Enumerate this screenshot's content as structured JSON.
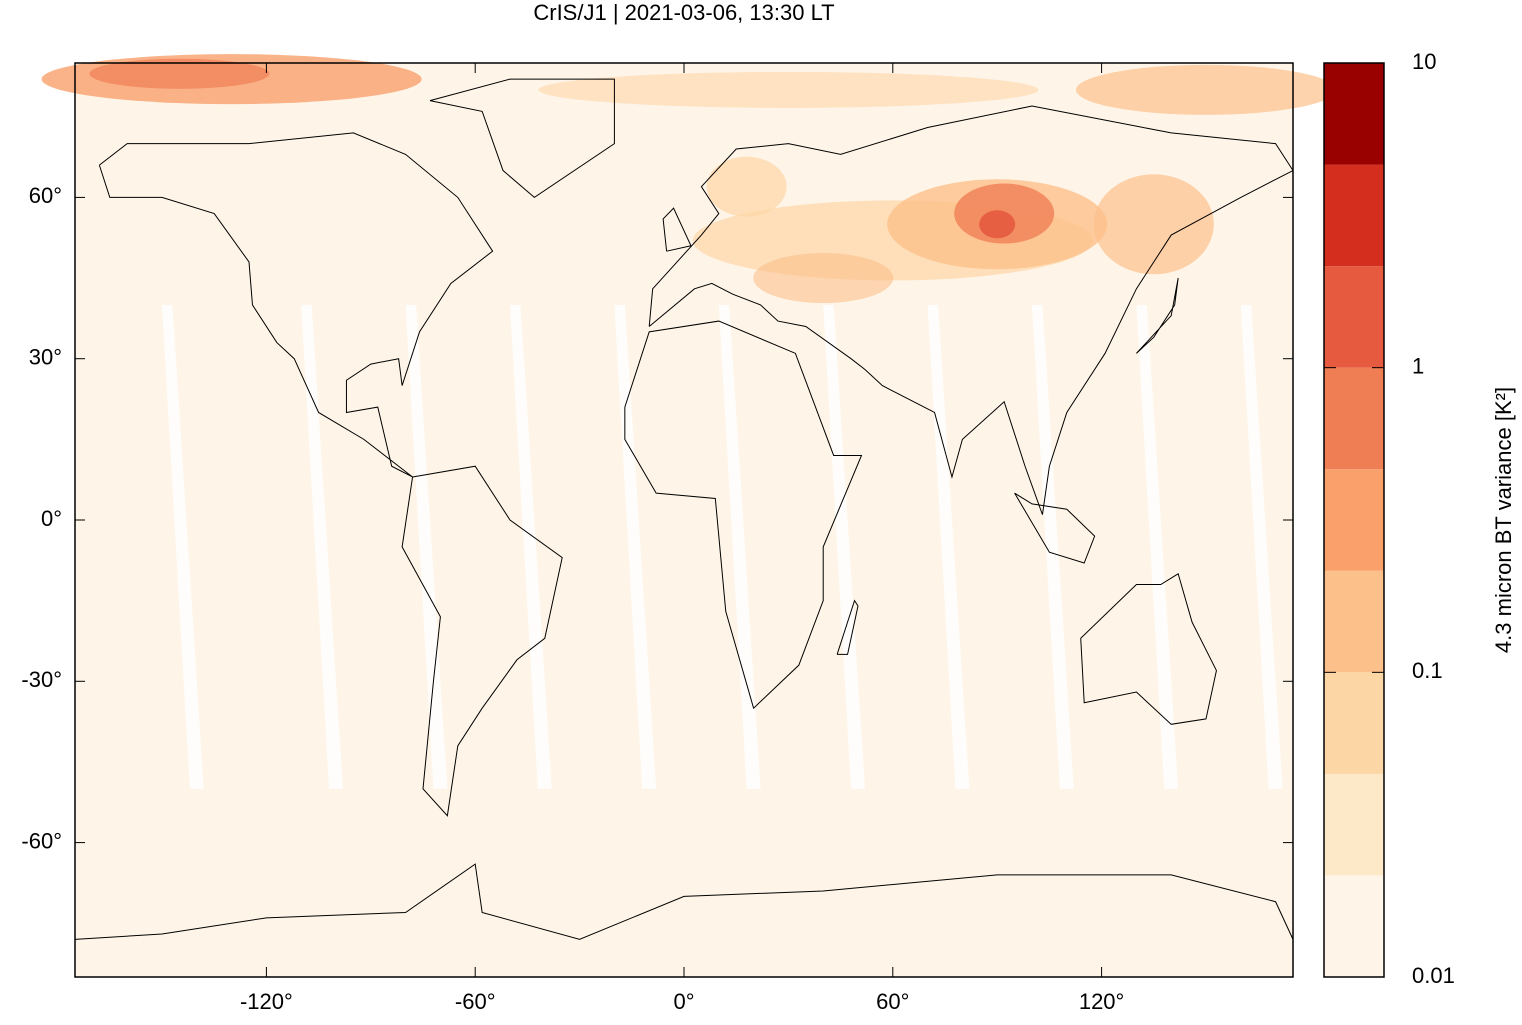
{
  "chart_data": {
    "type": "map",
    "title": "CrIS/J1 | 2021-03-06, 13:30 LT",
    "xlim": [
      -175,
      175
    ],
    "ylim": [
      -85,
      85
    ],
    "xticks": [
      {
        "value": -120,
        "label": "-120°"
      },
      {
        "value": -60,
        "label": "-60°"
      },
      {
        "value": 0,
        "label": "0°"
      },
      {
        "value": 60,
        "label": "60°"
      },
      {
        "value": 120,
        "label": "120°"
      }
    ],
    "yticks": [
      {
        "value": -60,
        "label": "-60°"
      },
      {
        "value": -30,
        "label": "-30°"
      },
      {
        "value": 0,
        "label": "0°"
      },
      {
        "value": 30,
        "label": "30°"
      },
      {
        "value": 60,
        "label": "60°"
      }
    ],
    "colorbar": {
      "label": "4.3 micron BT variance [K²]",
      "log": true,
      "lim": [
        0.01,
        10
      ],
      "ticks": [
        0.01,
        0.1,
        1,
        10
      ],
      "colors": [
        "#fef5e8",
        "#fde8c8",
        "#fdd6a6",
        "#fcc08b",
        "#f9a06b",
        "#f07e55",
        "#e65a3f",
        "#d42e1f",
        "#990000"
      ]
    }
  }
}
